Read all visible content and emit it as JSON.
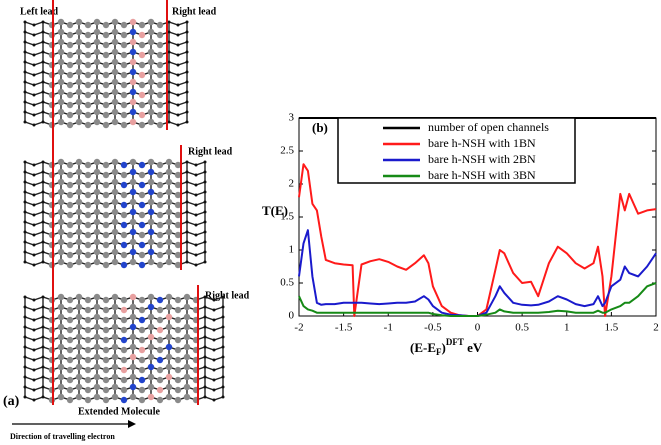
{
  "panel_a": {
    "left_lead": "Left lead",
    "right_leads": [
      "Right lead",
      "Right lead",
      "Right lead"
    ],
    "label": "(a)",
    "extended": "Extended Molecule",
    "direction": "Direction of travelling electron"
  },
  "chart_data": {
    "type": "line",
    "annotation": "(b)",
    "ylabel": "T(E)",
    "xlabel_parts": [
      "(E-E",
      "F",
      ")",
      "DFT",
      " eV"
    ],
    "xlim": [
      -2,
      2
    ],
    "ylim": [
      0,
      3
    ],
    "xticks": [
      -2,
      -1.5,
      -1,
      -0.5,
      0,
      0.5,
      1,
      1.5,
      2
    ],
    "yticks": [
      0,
      0.5,
      1,
      1.5,
      2,
      2.5,
      3
    ],
    "x": [
      -2,
      -1.95,
      -1.9,
      -1.85,
      -1.8,
      -1.75,
      -1.7,
      -1.6,
      -1.5,
      -1.4,
      -1.38,
      -1.3,
      -1.2,
      -1.1,
      -1,
      -0.9,
      -0.8,
      -0.7,
      -0.6,
      -0.55,
      -0.5,
      -0.4,
      -0.3,
      -0.2,
      -0.1,
      0,
      0.1,
      0.2,
      0.25,
      0.3,
      0.4,
      0.5,
      0.6,
      0.68,
      0.8,
      0.9,
      1,
      1.1,
      1.2,
      1.3,
      1.35,
      1.4,
      1.43,
      1.5,
      1.6,
      1.65,
      1.7,
      1.8,
      1.9,
      2
    ],
    "series": [
      {
        "name": "number of open channels",
        "color": "#000000",
        "values": [
          3,
          3,
          3,
          3,
          3,
          3,
          3,
          3,
          3,
          3,
          3,
          3,
          3,
          3,
          3,
          3,
          3,
          3,
          3,
          3,
          3,
          3,
          3,
          3,
          3,
          3,
          3,
          3,
          3,
          3,
          3,
          3,
          3,
          3,
          3,
          3,
          3,
          3,
          3,
          3,
          3,
          3,
          3,
          3,
          3,
          3,
          3,
          3,
          3,
          3
        ]
      },
      {
        "name": "bare h-NSH with 1BN",
        "color": "#ff1a1a",
        "values": [
          1.8,
          2.3,
          2.2,
          1.7,
          1.6,
          1.2,
          0.85,
          0.8,
          0.78,
          0.77,
          0,
          0.78,
          0.83,
          0.86,
          0.82,
          0.75,
          0.7,
          0.8,
          0.92,
          0.8,
          0.45,
          0.15,
          0.05,
          0.01,
          0,
          0,
          0.1,
          0.7,
          1.0,
          0.95,
          0.65,
          0.5,
          0.52,
          0.3,
          0.8,
          1.05,
          0.95,
          0.8,
          0.72,
          0.8,
          1.05,
          0.6,
          0,
          0.6,
          1.85,
          1.6,
          1.85,
          1.55,
          1.6,
          1.62
        ]
      },
      {
        "name": "bare h-NSH with 2BN",
        "color": "#1a1acc",
        "values": [
          0.6,
          1.1,
          1.3,
          0.6,
          0.2,
          0.17,
          0.18,
          0.18,
          0.2,
          0.2,
          0.2,
          0.2,
          0.19,
          0.18,
          0.19,
          0.2,
          0.2,
          0.22,
          0.3,
          0.25,
          0.15,
          0.05,
          0.02,
          0.01,
          0,
          0,
          0.05,
          0.3,
          0.45,
          0.35,
          0.2,
          0.17,
          0.16,
          0.17,
          0.22,
          0.3,
          0.25,
          0.18,
          0.15,
          0.18,
          0.3,
          0.15,
          0.2,
          0.45,
          0.55,
          0.75,
          0.65,
          0.6,
          0.75,
          0.95
        ]
      },
      {
        "name": "bare h-NSH with 3BN",
        "color": "#168a16",
        "values": [
          0.3,
          0.15,
          0.1,
          0.08,
          0.05,
          0.05,
          0.05,
          0.05,
          0.05,
          0.05,
          0.05,
          0.05,
          0.05,
          0.05,
          0.05,
          0.05,
          0.05,
          0.05,
          0.05,
          0.05,
          0.03,
          0.01,
          0,
          0,
          0,
          0,
          0.02,
          0.05,
          0.1,
          0.07,
          0.05,
          0.05,
          0.05,
          0.05,
          0.06,
          0.08,
          0.07,
          0.05,
          0.05,
          0.05,
          0.08,
          0.05,
          0.05,
          0.1,
          0.15,
          0.2,
          0.2,
          0.3,
          0.45,
          0.5
        ]
      }
    ]
  }
}
